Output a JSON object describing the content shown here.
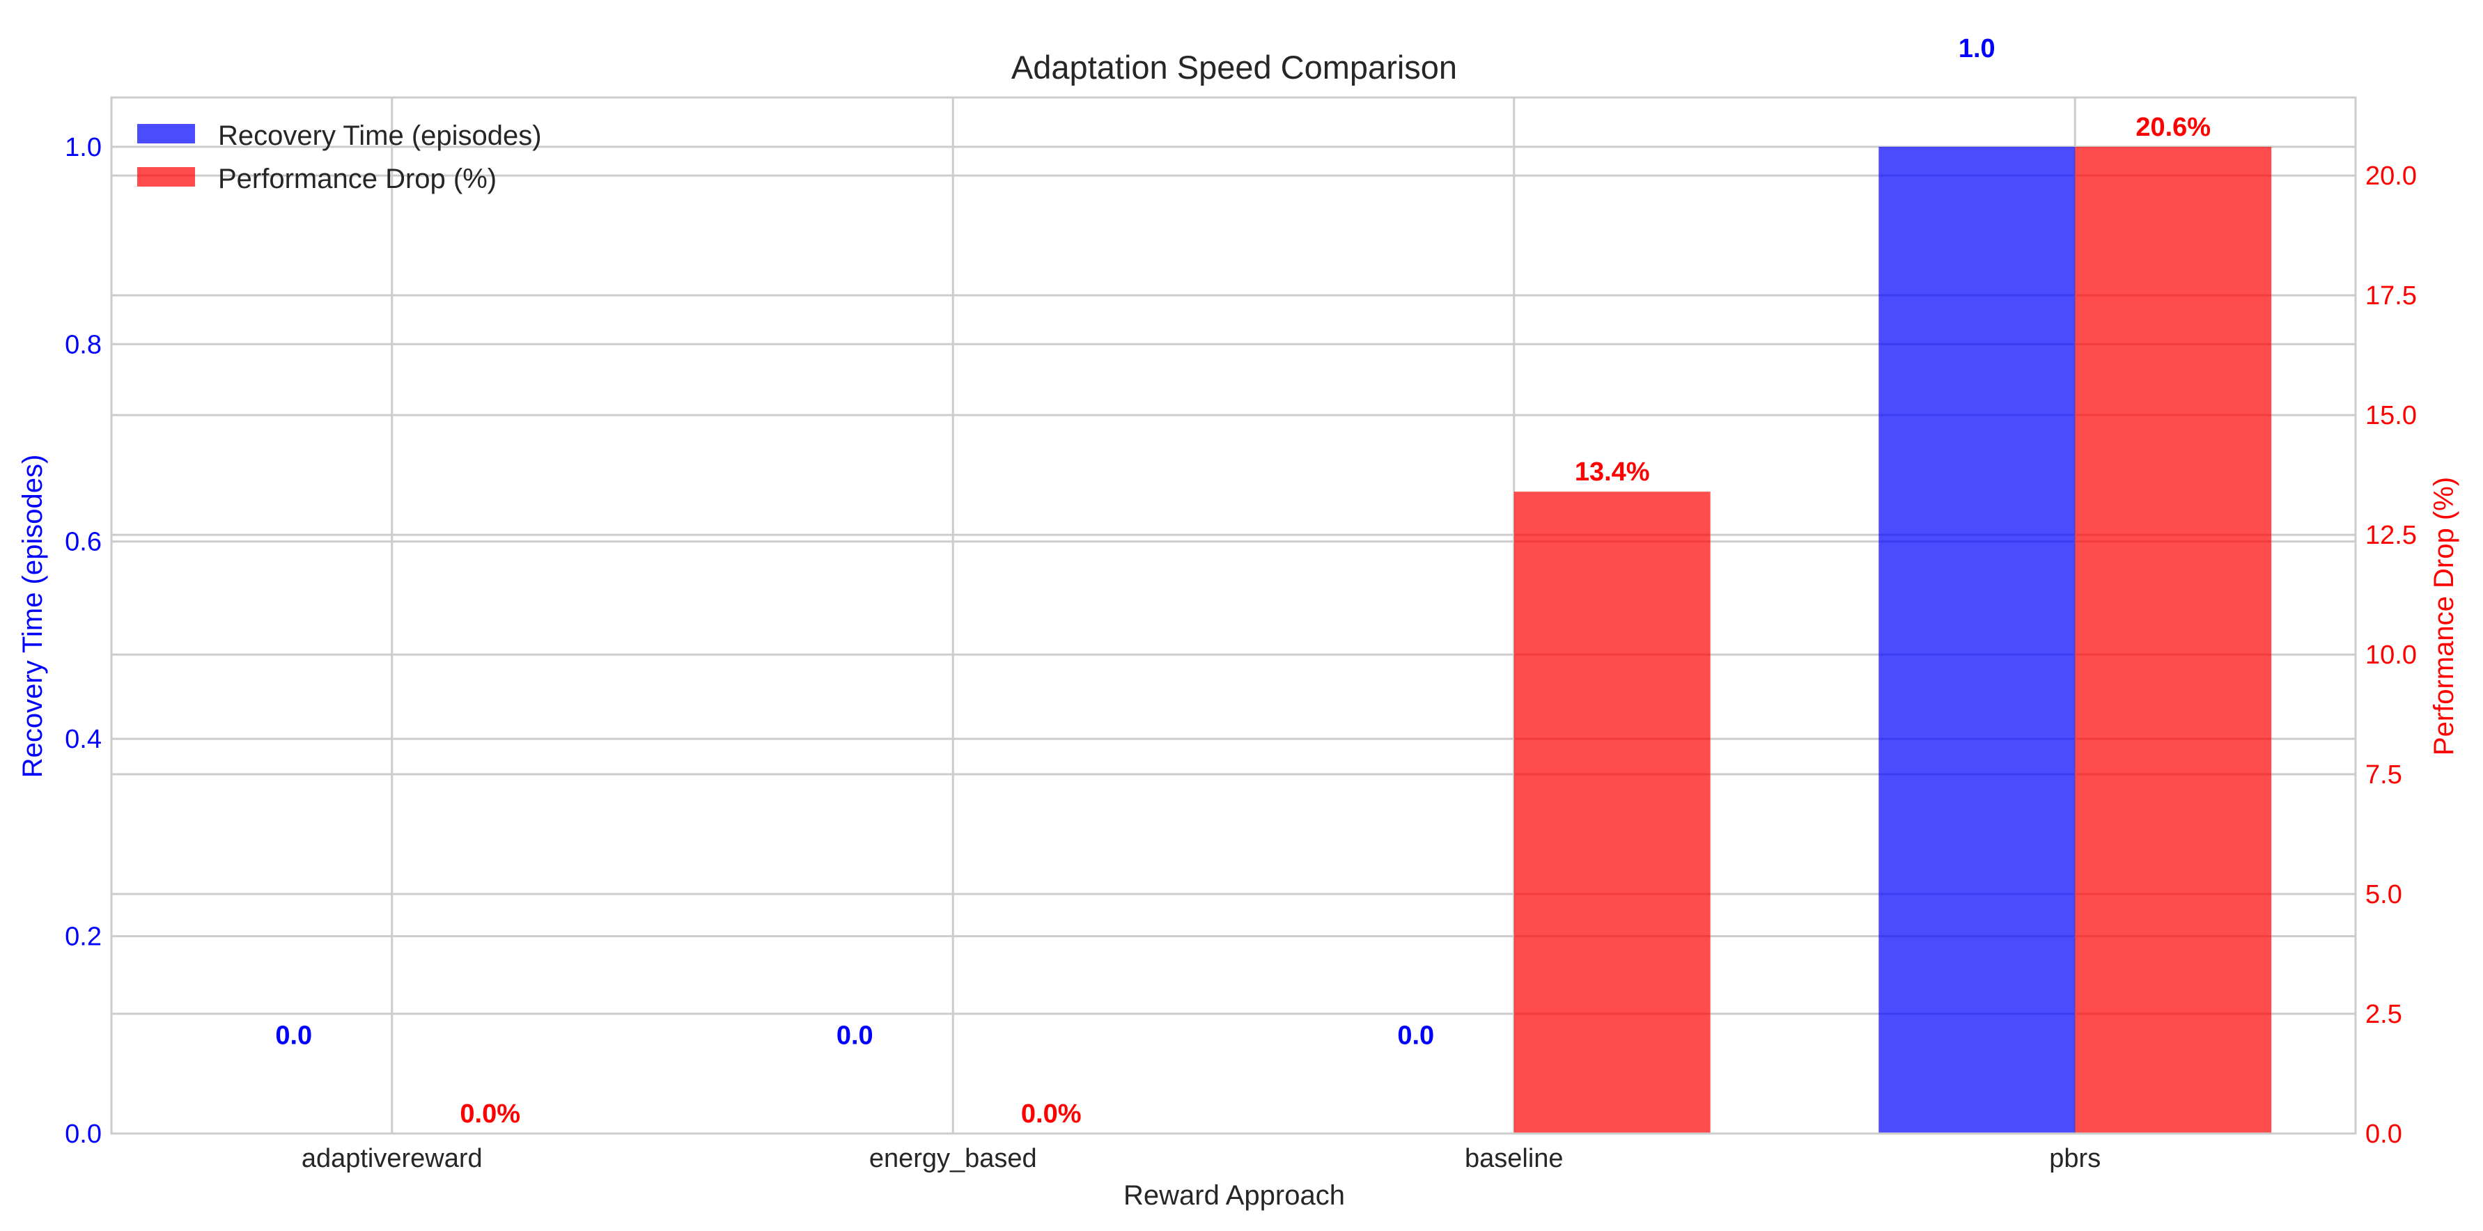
{
  "chart_data": {
    "type": "bar",
    "title": "Adaptation Speed Comparison",
    "xlabel": "Reward Approach",
    "categories": [
      "adaptivereward",
      "energy_based",
      "baseline",
      "pbrs"
    ],
    "series": [
      {
        "name": "Recovery Time (episodes)",
        "axis": "left",
        "color": "#0000ff",
        "values": [
          0.0,
          0.0,
          0.0,
          1.0
        ],
        "labels": [
          "0.0",
          "0.0",
          "0.0",
          "1.0"
        ]
      },
      {
        "name": "Performance Drop (%)",
        "axis": "right",
        "color": "#ff0000",
        "values": [
          0.0,
          0.0,
          13.4,
          20.6
        ],
        "labels": [
          "0.0%",
          "0.0%",
          "13.4%",
          "20.6%"
        ]
      }
    ],
    "y_left": {
      "label": "Recovery Time (episodes)",
      "color": "#0000ff",
      "ylim": [
        0,
        1.05
      ],
      "ticks": [
        "0.0",
        "0.2",
        "0.4",
        "0.6",
        "0.8",
        "1.0"
      ]
    },
    "y_right": {
      "label": "Performance Drop (%)",
      "color": "#ff0000",
      "ylim": [
        0,
        21.63
      ],
      "ticks": [
        "0.0",
        "2.5",
        "5.0",
        "7.5",
        "10.0",
        "12.5",
        "15.0",
        "17.5",
        "20.0"
      ]
    },
    "grid": true,
    "legend": "upper-left"
  }
}
